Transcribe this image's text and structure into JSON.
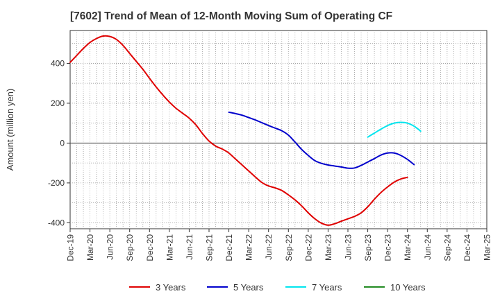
{
  "chart_data": {
    "type": "line",
    "title": "[7602]  Trend of Mean of 12-Month Moving Sum of Operating CF",
    "xlabel": "",
    "ylabel": "Amount (million yen)",
    "ylim": [
      -430,
      565
    ],
    "yticks": [
      -400,
      -200,
      0,
      200,
      400
    ],
    "ytick_labels": [
      "-400",
      "-200",
      "0",
      "200",
      "400"
    ],
    "x_start": "2019-12",
    "x_end": "2025-03",
    "xtick_labels": [
      "Dec-19",
      "Mar-20",
      "Jun-20",
      "Sep-20",
      "Dec-20",
      "Mar-21",
      "Jun-21",
      "Sep-21",
      "Dec-21",
      "Mar-22",
      "Jun-22",
      "Sep-22",
      "Dec-22",
      "Mar-23",
      "Jun-23",
      "Sep-23",
      "Dec-23",
      "Mar-24",
      "Jun-24",
      "Sep-24",
      "Dec-24",
      "Mar-25"
    ],
    "grid": "dotted",
    "legend_position": "bottom",
    "series": [
      {
        "name": "3 Years",
        "color": "#e00000",
        "start_month_index": 0,
        "values": [
          405,
          440,
          475,
          505,
          525,
          537,
          535,
          520,
          490,
          450,
          410,
          370,
          325,
          282,
          242,
          206,
          175,
          150,
          125,
          92,
          48,
          10,
          -15,
          -30,
          -50,
          -80,
          -110,
          -140,
          -170,
          -198,
          -215,
          -225,
          -238,
          -260,
          -285,
          -315,
          -350,
          -380,
          -402,
          -412,
          -405,
          -392,
          -380,
          -368,
          -350,
          -320,
          -282,
          -248,
          -220,
          -196,
          -180,
          -172
        ]
      },
      {
        "name": "5 Years",
        "color": "#0000cc",
        "start_month_index": 24,
        "values": [
          155,
          148,
          140,
          128,
          116,
          102,
          88,
          75,
          62,
          40,
          5,
          -32,
          -62,
          -88,
          -102,
          -110,
          -115,
          -120,
          -126,
          -125,
          -112,
          -95,
          -78,
          -60,
          -50,
          -50,
          -62,
          -82,
          -108
        ]
      },
      {
        "name": "7 Years",
        "color": "#00e5ee",
        "start_month_index": 45,
        "values": [
          30,
          50,
          70,
          88,
          100,
          104,
          100,
          85,
          60
        ]
      },
      {
        "name": "10 Years",
        "color": "#228b22",
        "start_month_index": 0,
        "values": []
      }
    ]
  }
}
